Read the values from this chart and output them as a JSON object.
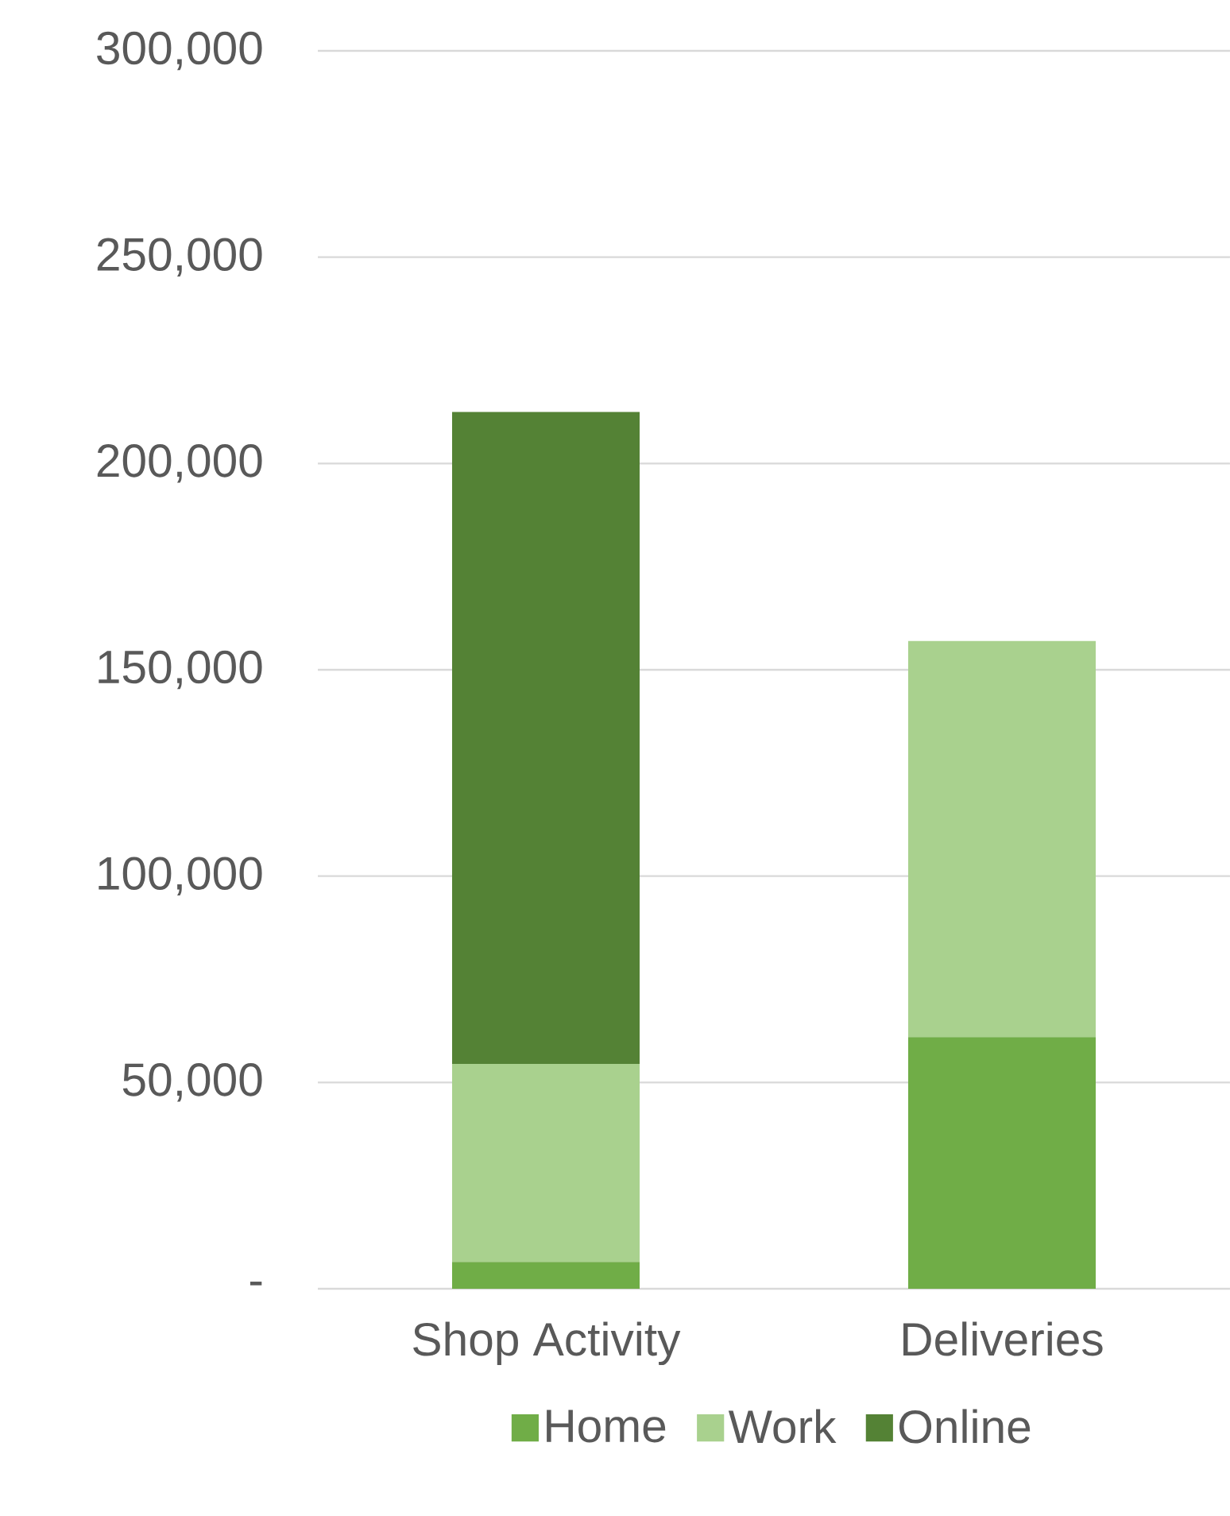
{
  "chart_data": {
    "type": "bar",
    "stacked": true,
    "categories": [
      "Shop Activity",
      "Deliveries"
    ],
    "series": [
      {
        "name": "Home",
        "color": "#70ad47",
        "values": [
          6500,
          61000
        ]
      },
      {
        "name": "Work",
        "color": "#a9d18e",
        "values": [
          48000,
          96000
        ]
      },
      {
        "name": "Online",
        "color": "#548235",
        "values": [
          158000,
          0
        ]
      }
    ],
    "ylim": [
      0,
      300000
    ],
    "yticks": [
      {
        "value": 0,
        "label": "-"
      },
      {
        "value": 50000,
        "label": "50,000"
      },
      {
        "value": 100000,
        "label": "100,000"
      },
      {
        "value": 150000,
        "label": "150,000"
      },
      {
        "value": 200000,
        "label": "200,000"
      },
      {
        "value": 250000,
        "label": "250,000"
      },
      {
        "value": 300000,
        "label": "300,000"
      }
    ],
    "grid": "y",
    "legend": "bottom"
  }
}
